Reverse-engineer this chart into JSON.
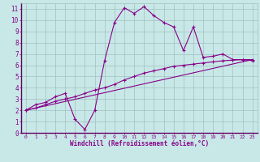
{
  "xlabel": "Windchill (Refroidissement éolien,°C)",
  "background_color": "#c8e8e8",
  "grid_color": "#a0c0c0",
  "line_color": "#880088",
  "xlim": [
    -0.5,
    23.5
  ],
  "ylim": [
    0,
    11.5
  ],
  "xticks": [
    0,
    1,
    2,
    3,
    4,
    5,
    6,
    7,
    8,
    9,
    10,
    11,
    12,
    13,
    14,
    15,
    16,
    17,
    18,
    19,
    20,
    21,
    22,
    23
  ],
  "yticks": [
    0,
    1,
    2,
    3,
    4,
    5,
    6,
    7,
    8,
    9,
    10,
    11
  ],
  "line1_x": [
    0,
    1,
    2,
    3,
    4,
    5,
    6,
    7,
    8,
    9,
    10,
    11,
    12,
    13,
    14,
    15,
    16,
    17,
    18,
    19,
    20,
    21,
    22,
    23
  ],
  "line1_y": [
    2.0,
    2.5,
    2.7,
    3.2,
    3.5,
    1.2,
    0.3,
    2.0,
    6.4,
    9.8,
    11.1,
    10.6,
    11.2,
    10.4,
    9.8,
    9.4,
    7.3,
    9.4,
    6.7,
    6.8,
    7.0,
    6.5,
    6.5,
    6.4
  ],
  "line2_x": [
    0,
    1,
    2,
    3,
    4,
    5,
    6,
    7,
    8,
    9,
    10,
    11,
    12,
    13,
    14,
    15,
    16,
    17,
    18,
    19,
    20,
    21,
    22,
    23
  ],
  "line2_y": [
    2.0,
    2.2,
    2.5,
    2.8,
    3.0,
    3.2,
    3.5,
    3.8,
    4.0,
    4.3,
    4.7,
    5.0,
    5.3,
    5.5,
    5.7,
    5.9,
    6.0,
    6.1,
    6.2,
    6.3,
    6.4,
    6.45,
    6.5,
    6.5
  ],
  "line3_x": [
    0,
    23
  ],
  "line3_y": [
    2.0,
    6.5
  ]
}
